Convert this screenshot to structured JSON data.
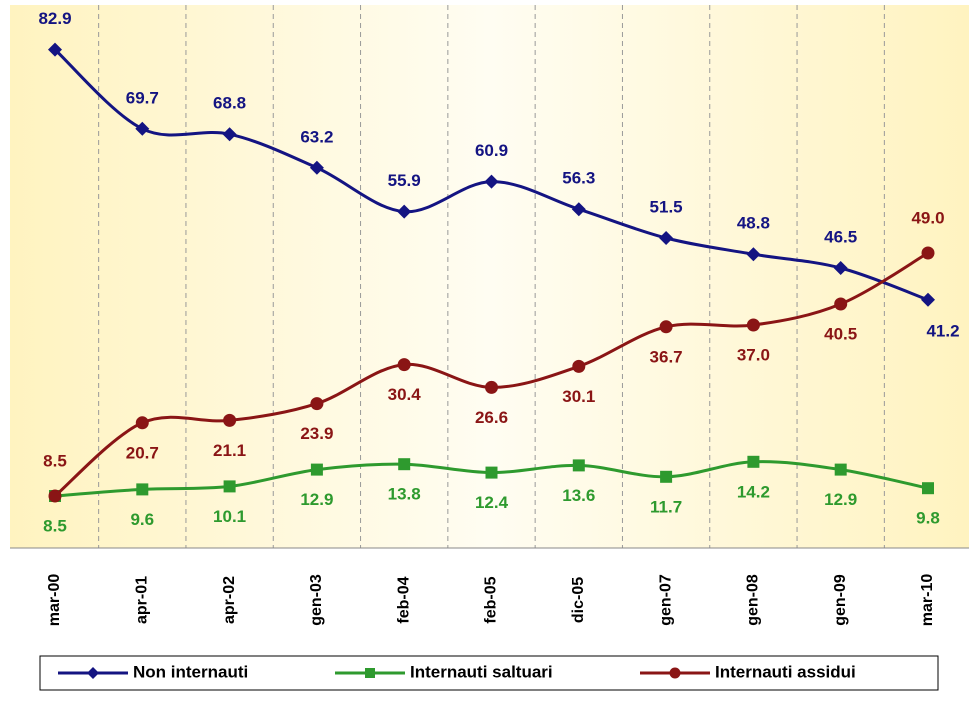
{
  "chart_data": {
    "type": "line",
    "categories": [
      "mar-00",
      "apr-01",
      "apr-02",
      "gen-03",
      "feb-04",
      "feb-05",
      "dic-05",
      "gen-07",
      "gen-08",
      "gen-09",
      "mar-10"
    ],
    "series": [
      {
        "name": "Non internauti",
        "color": "#141482",
        "marker": "diamond",
        "values": [
          82.9,
          69.7,
          68.8,
          63.2,
          55.9,
          60.9,
          56.3,
          51.5,
          48.8,
          46.5,
          41.2
        ]
      },
      {
        "name": "Internauti saltuari",
        "color": "#2e9a2e",
        "marker": "square",
        "values": [
          8.5,
          9.6,
          10.1,
          12.9,
          13.8,
          12.4,
          13.6,
          11.7,
          14.2,
          12.9,
          9.8
        ]
      },
      {
        "name": "Internauti assidui",
        "color": "#8a1515",
        "marker": "circle",
        "values": [
          8.5,
          20.7,
          21.1,
          23.9,
          30.4,
          26.6,
          30.1,
          36.7,
          37.0,
          40.5,
          49.0
        ],
        "value_labels": [
          "8.5",
          "20.7",
          "21.1",
          "23.9",
          "30.4",
          "26.6",
          "30.1",
          "36.7",
          "37.0",
          "40.5",
          "49.0"
        ]
      }
    ],
    "ylim": [
      0,
      90
    ],
    "legend": "bottom",
    "smooth": true
  }
}
